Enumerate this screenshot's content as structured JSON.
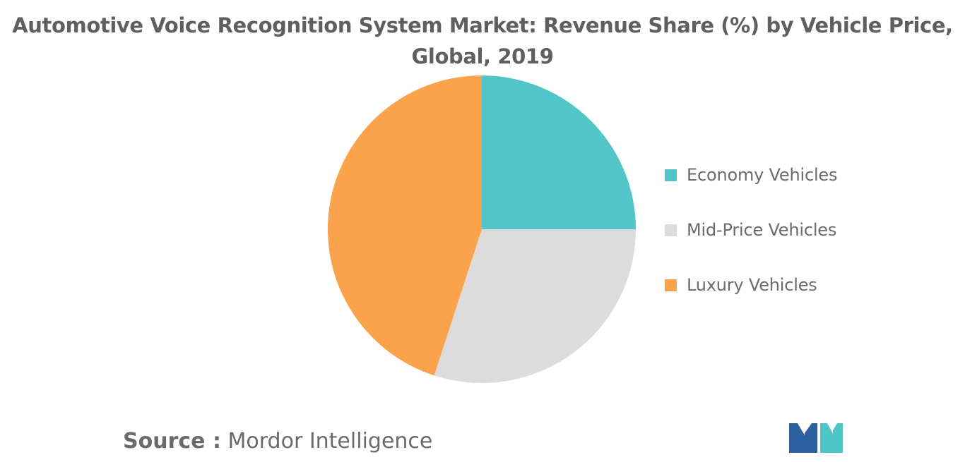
{
  "title_line1": "Automotive Voice Recognition System Market: Revenue Share (%) by Vehicle Price,",
  "title_line2": "Global, 2019",
  "source": {
    "label": "Source :",
    "text": "Mordor Intelligence"
  },
  "chart_data": {
    "type": "pie",
    "title": "Automotive Voice Recognition System Market: Revenue Share (%) by Vehicle Price, Global, 2019",
    "categories": [
      "Economy Vehicles",
      "Mid-Price Vehicles",
      "Luxury Vehicles"
    ],
    "values": [
      25,
      30,
      45
    ],
    "colors": [
      "#52c5c9",
      "#dcdcdc",
      "#fba24c"
    ],
    "legend_position": "right"
  },
  "logo_colors": {
    "left": "#2a5fa0",
    "right": "#4ec6c6"
  }
}
